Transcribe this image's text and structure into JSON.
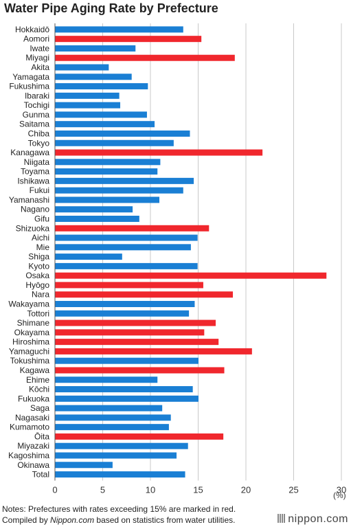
{
  "chart_data": {
    "type": "bar",
    "orientation": "horizontal",
    "title": "Water Pipe Aging Rate by Prefecture",
    "xlabel": "",
    "ylabel": "",
    "unit": "(%)",
    "xlim": [
      0,
      30
    ],
    "xticks": [
      0,
      5,
      10,
      15,
      20,
      25,
      30
    ],
    "grid": true,
    "threshold": 15,
    "colors": {
      "normal": "#1a7fd4",
      "exceeding": "#f0272d"
    },
    "categories": [
      "Hokkaidō",
      "Aomori",
      "Iwate",
      "Miyagi",
      "Akita",
      "Yamagata",
      "Fukushima",
      "Ibaraki",
      "Tochigi",
      "Gunma",
      "Saitama",
      "Chiba",
      "Tokyo",
      "Kanagawa",
      "Niigata",
      "Toyama",
      "Ishikawa",
      "Fukui",
      "Yamanashi",
      "Nagano",
      "Gifu",
      "Shizuoka",
      "Aichi",
      "Mie",
      "Shiga",
      "Kyoto",
      "Osaka",
      "Hyōgo",
      "Nara",
      "Wakayama",
      "Tottori",
      "Shimane",
      "Okayama",
      "Hiroshima",
      "Yamaguchi",
      "Tokushima",
      "Kagawa",
      "Ehime",
      "Kōchi",
      "Fukuoka",
      "Saga",
      "Nagasaki",
      "Kumamoto",
      "Ōita",
      "Miyazaki",
      "Kagoshima",
      "Okinawa",
      "Total"
    ],
    "values": [
      13.4,
      15.3,
      8.4,
      18.8,
      5.6,
      8.0,
      9.7,
      6.7,
      6.8,
      9.6,
      10.4,
      14.1,
      12.4,
      21.7,
      11.0,
      10.7,
      14.5,
      13.4,
      10.9,
      8.1,
      8.8,
      16.1,
      14.9,
      14.2,
      7.0,
      14.9,
      28.4,
      15.5,
      18.6,
      14.6,
      14.0,
      16.8,
      15.6,
      17.1,
      20.6,
      15.0,
      17.7,
      10.7,
      14.4,
      15.0,
      11.2,
      12.1,
      11.9,
      17.6,
      13.9,
      12.7,
      6.0,
      13.6
    ]
  },
  "notes": {
    "line1": "Notes: Prefectures with rates exceeding 15% are marked in red.",
    "line2_prefix": "Compiled by ",
    "line2_site": "Nippon.com",
    "line2_suffix": " based on statistics from water utilities."
  },
  "brand": "nippon.com"
}
